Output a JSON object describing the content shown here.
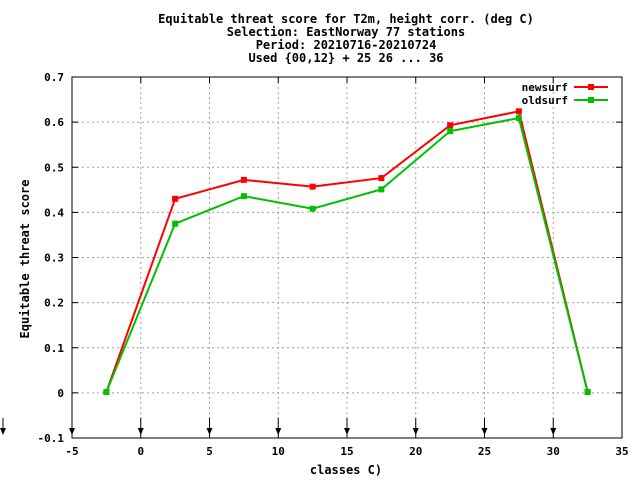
{
  "chart_data": {
    "type": "line",
    "title_lines": [
      "Equitable threat score  for T2m, height corr. (deg C)",
      "Selection: EastNorway     77 stations",
      "Period: 20210716-20210724",
      "Used {00,12} + 25 26 ... 36"
    ],
    "xlabel": "classes C)",
    "ylabel": "Equitable threat score",
    "xlim": [
      -5,
      35
    ],
    "ylim": [
      -0.1,
      0.7
    ],
    "xticks": [
      "-5",
      "0",
      "5",
      "10",
      "15",
      "20",
      "25",
      "30",
      "35"
    ],
    "yticks": [
      "-0.1",
      "0",
      "0.1",
      "0.2",
      "0.3",
      "0.4",
      "0.5",
      "0.6",
      "0.7"
    ],
    "xtick_values": [
      -5,
      0,
      5,
      10,
      15,
      20,
      25,
      30,
      35
    ],
    "ytick_values": [
      -0.1,
      0,
      0.1,
      0.2,
      0.3,
      0.4,
      0.5,
      0.6,
      0.7
    ],
    "grid": true,
    "legend_position": "top-right",
    "threshold_markers_x": [
      -5,
      0,
      5,
      10,
      15,
      20,
      25,
      30
    ],
    "series": [
      {
        "name": "newsurf",
        "color": "#ff0000",
        "x": [
          -2.5,
          2.5,
          7.5,
          12.5,
          17.5,
          22.5,
          27.5,
          32.5
        ],
        "y": [
          0.002,
          0.43,
          0.472,
          0.457,
          0.476,
          0.593,
          0.624,
          0.002
        ]
      },
      {
        "name": "oldsurf",
        "color": "#00c000",
        "x": [
          -2.5,
          2.5,
          7.5,
          12.5,
          17.5,
          22.5,
          27.5,
          32.5
        ],
        "y": [
          0.002,
          0.375,
          0.436,
          0.408,
          0.451,
          0.58,
          0.609,
          0.002
        ]
      }
    ]
  }
}
